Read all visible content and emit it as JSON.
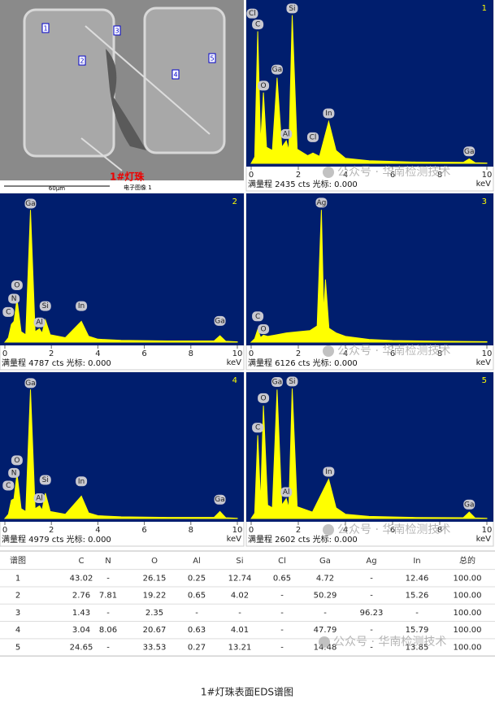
{
  "image": {
    "title": "1#灯珠",
    "scale": "60μm",
    "caption": "电子图像 1",
    "spots": [
      "1",
      "2",
      "3",
      "4",
      "5"
    ]
  },
  "chart_data": [
    {
      "type": "area",
      "label": "1",
      "footer": "满量程 2435 cts 光标: 0.000",
      "xlabel": "keV",
      "color": "#ffff00",
      "xlim": [
        0,
        10
      ],
      "ylim": [
        0,
        2435
      ],
      "xticks": [
        0,
        2,
        4,
        6,
        8,
        10
      ],
      "x": [
        0,
        0.15,
        0.28,
        0.4,
        0.52,
        0.65,
        0.9,
        1.1,
        1.3,
        1.49,
        1.6,
        1.74,
        1.95,
        2.4,
        2.62,
        2.9,
        3.29,
        3.6,
        4,
        5,
        7,
        9,
        9.25,
        9.5,
        10
      ],
      "values": [
        0,
        100,
        2050,
        300,
        1100,
        250,
        200,
        1330,
        250,
        350,
        200,
        2300,
        220,
        120,
        160,
        110,
        650,
        200,
        80,
        40,
        20,
        15,
        70,
        10,
        5
      ],
      "annotations": [
        {
          "text": "Cl",
          "x": 0.05,
          "y": 2250
        },
        {
          "text": "C",
          "x": 0.28,
          "y": 2080
        },
        {
          "text": "Si",
          "x": 1.74,
          "y": 2330
        },
        {
          "text": "Ga",
          "x": 1.1,
          "y": 1380
        },
        {
          "text": "O",
          "x": 0.52,
          "y": 1130
        },
        {
          "text": "Al",
          "x": 1.49,
          "y": 380
        },
        {
          "text": "Cl",
          "x": 2.62,
          "y": 330
        },
        {
          "text": "In",
          "x": 3.29,
          "y": 700
        },
        {
          "text": "Ga",
          "x": 9.25,
          "y": 110
        }
      ]
    },
    {
      "type": "area",
      "label": "2",
      "footer": "满量程 4787 cts 光标: 0.000",
      "xlabel": "keV",
      "color": "#ffff00",
      "xlim": [
        0,
        10
      ],
      "ylim": [
        0,
        4787
      ],
      "xticks": [
        0,
        2,
        4,
        6,
        8,
        10
      ],
      "x": [
        0,
        0.15,
        0.28,
        0.39,
        0.52,
        0.7,
        0.9,
        1.1,
        1.3,
        1.49,
        1.6,
        1.74,
        1.95,
        2.6,
        3.29,
        3.6,
        4,
        5,
        7,
        9,
        9.25,
        9.5,
        10
      ],
      "values": [
        0,
        150,
        600,
        700,
        1450,
        350,
        250,
        4450,
        350,
        450,
        300,
        750,
        250,
        150,
        700,
        200,
        100,
        60,
        40,
        40,
        220,
        30,
        10
      ],
      "annotations": [
        {
          "text": "Ga",
          "x": 1.1,
          "y": 4500
        },
        {
          "text": "O",
          "x": 0.52,
          "y": 1750
        },
        {
          "text": "N",
          "x": 0.39,
          "y": 1300
        },
        {
          "text": "C",
          "x": 0.15,
          "y": 850
        },
        {
          "text": "Si",
          "x": 1.74,
          "y": 1050
        },
        {
          "text": "Al",
          "x": 1.49,
          "y": 500
        },
        {
          "text": "In",
          "x": 3.29,
          "y": 1050
        },
        {
          "text": "Ga",
          "x": 9.25,
          "y": 550
        }
      ]
    },
    {
      "type": "area",
      "label": "3",
      "footer": "满量程 6126 cts 光标: 0.000",
      "xlabel": "keV",
      "color": "#ffff00",
      "xlim": [
        0,
        10
      ],
      "ylim": [
        0,
        6126
      ],
      "xticks": [
        0,
        2,
        4,
        6,
        8,
        10
      ],
      "x": [
        0,
        0.15,
        0.28,
        0.4,
        0.52,
        0.7,
        1,
        1.5,
        2,
        2.5,
        2.8,
        2.98,
        3.08,
        3.15,
        3.3,
        3.6,
        4,
        5,
        6,
        8,
        10
      ],
      "values": [
        0,
        150,
        550,
        200,
        300,
        250,
        300,
        400,
        450,
        500,
        700,
        5700,
        1200,
        2700,
        600,
        400,
        250,
        120,
        70,
        40,
        20
      ],
      "annotations": [
        {
          "text": "Ag",
          "x": 2.98,
          "y": 5800
        },
        {
          "text": "C",
          "x": 0.28,
          "y": 900
        },
        {
          "text": "O",
          "x": 0.52,
          "y": 350
        }
      ]
    },
    {
      "type": "area",
      "label": "4",
      "footer": "满量程 4979 cts 光标: 0.000",
      "xlabel": "keV",
      "color": "#ffff00",
      "xlim": [
        0,
        10
      ],
      "ylim": [
        0,
        4979
      ],
      "xticks": [
        0,
        2,
        4,
        6,
        8,
        10
      ],
      "x": [
        0,
        0.15,
        0.28,
        0.39,
        0.52,
        0.7,
        0.9,
        1.1,
        1.3,
        1.49,
        1.6,
        1.74,
        1.95,
        2.6,
        3.29,
        3.6,
        4,
        5,
        7,
        9,
        9.25,
        9.5,
        10
      ],
      "values": [
        0,
        150,
        650,
        700,
        1600,
        350,
        250,
        4600,
        350,
        450,
        300,
        900,
        250,
        150,
        800,
        200,
        100,
        60,
        40,
        40,
        250,
        30,
        10
      ],
      "annotations": [
        {
          "text": "Ga",
          "x": 1.1,
          "y": 4650
        },
        {
          "text": "O",
          "x": 0.52,
          "y": 1900
        },
        {
          "text": "N",
          "x": 0.39,
          "y": 1450
        },
        {
          "text": "C",
          "x": 0.15,
          "y": 1000
        },
        {
          "text": "Si",
          "x": 1.74,
          "y": 1200
        },
        {
          "text": "Al",
          "x": 1.49,
          "y": 550
        },
        {
          "text": "In",
          "x": 3.29,
          "y": 1150
        },
        {
          "text": "Ga",
          "x": 9.25,
          "y": 500
        }
      ]
    },
    {
      "type": "area",
      "label": "5",
      "footer": "满量程 2602 cts 光标: 0.000",
      "xlabel": "keV",
      "color": "#ffff00",
      "xlim": [
        0,
        10
      ],
      "ylim": [
        0,
        2602
      ],
      "xticks": [
        0,
        2,
        4,
        6,
        8,
        10
      ],
      "x": [
        0,
        0.15,
        0.28,
        0.4,
        0.52,
        0.7,
        0.9,
        1.1,
        1.3,
        1.49,
        1.6,
        1.74,
        1.95,
        2.6,
        3.29,
        3.6,
        4,
        5,
        7,
        9,
        9.25,
        9.5,
        10
      ],
      "values": [
        0,
        100,
        1550,
        300,
        2100,
        250,
        200,
        2400,
        250,
        370,
        200,
        2420,
        220,
        120,
        730,
        200,
        80,
        40,
        20,
        15,
        120,
        10,
        5
      ],
      "annotations": [
        {
          "text": "Ga",
          "x": 1.1,
          "y": 2450
        },
        {
          "text": "Si",
          "x": 1.74,
          "y": 2460
        },
        {
          "text": "O",
          "x": 0.52,
          "y": 2150
        },
        {
          "text": "C",
          "x": 0.28,
          "y": 1600
        },
        {
          "text": "Al",
          "x": 1.49,
          "y": 400
        },
        {
          "text": "In",
          "x": 3.29,
          "y": 780
        },
        {
          "text": "Ga",
          "x": 9.25,
          "y": 170
        }
      ]
    }
  ],
  "table": {
    "header": [
      "谱图",
      "C",
      "N",
      "O",
      "Al",
      "Si",
      "Cl",
      "Ga",
      "Ag",
      "In",
      "总的"
    ],
    "rows": [
      [
        "1",
        "43.02",
        "-",
        "26.15",
        "0.25",
        "12.74",
        "0.65",
        "4.72",
        "-",
        "12.46",
        "100.00"
      ],
      [
        "2",
        "2.76",
        "7.81",
        "19.22",
        "0.65",
        "4.02",
        "-",
        "50.29",
        "-",
        "15.26",
        "100.00"
      ],
      [
        "3",
        "1.43",
        "-",
        "2.35",
        "-",
        "-",
        "-",
        "-",
        "96.23",
        "-",
        "100.00"
      ],
      [
        "4",
        "3.04",
        "8.06",
        "20.67",
        "0.63",
        "4.01",
        "-",
        "47.79",
        "-",
        "15.79",
        "100.00"
      ],
      [
        "5",
        "24.65",
        "-",
        "33.53",
        "0.27",
        "13.21",
        "-",
        "14.48",
        "-",
        "13.85",
        "100.00"
      ]
    ]
  },
  "watermark": "公众号 · 华南检测技术",
  "caption": "1#灯珠表面EDS谱图"
}
